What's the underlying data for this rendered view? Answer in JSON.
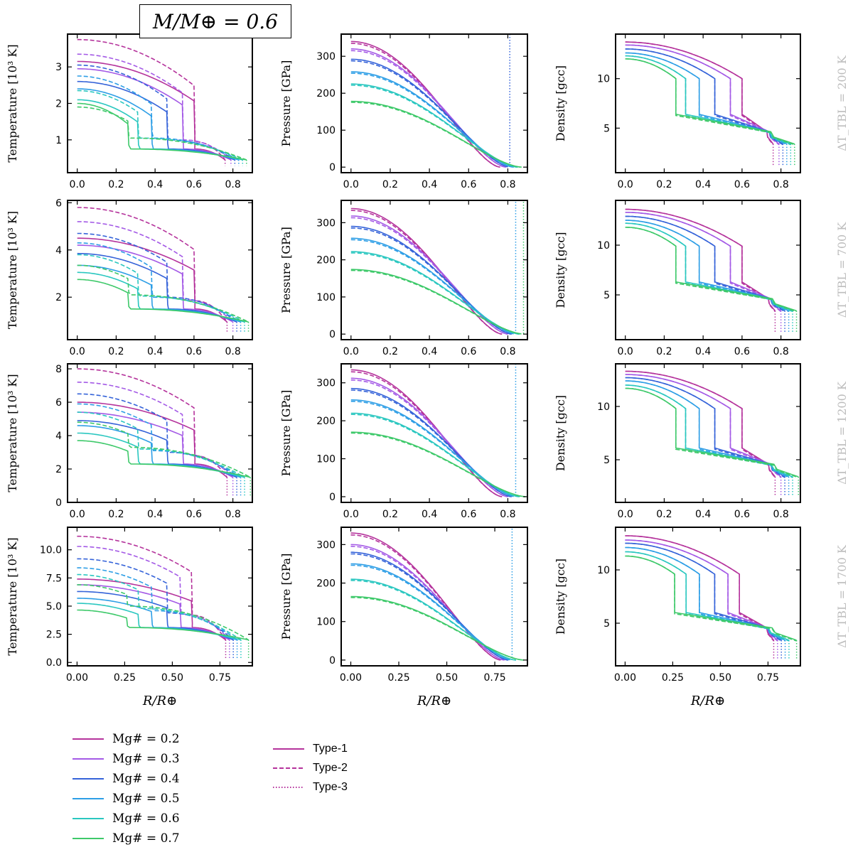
{
  "figure_title": "M/M⊕ = 0.6",
  "x_label": "R/R⊕",
  "row_labels": [
    "ΔT_TBL = 200 K",
    "ΔT_TBL = 700 K",
    "ΔT_TBL = 1200 K",
    "ΔT_TBL = 1700 K"
  ],
  "column_ylabels": [
    "Temperature [10³ K]",
    "Pressure [GPa]",
    "Density [gcc]"
  ],
  "legend": {
    "mg": [
      {
        "label": "Mg# = 0.2",
        "color": "#b5339c"
      },
      {
        "label": "Mg# = 0.3",
        "color": "#a45ae6"
      },
      {
        "label": "Mg# = 0.4",
        "color": "#3563d9"
      },
      {
        "label": "Mg# = 0.5",
        "color": "#2d9ee6"
      },
      {
        "label": "Mg# = 0.6",
        "color": "#2ac7c0"
      },
      {
        "label": "Mg# = 0.7",
        "color": "#3ec96a"
      }
    ],
    "types": [
      {
        "label": "Type-1",
        "style": "solid"
      },
      {
        "label": "Type-2",
        "style": "dashed"
      },
      {
        "label": "Type-3",
        "style": "dotted"
      }
    ]
  },
  "chart_data": [
    {
      "type": "line",
      "row": 0,
      "col": 0,
      "quantity": "temperature",
      "ylabel": "Temperature [10³ K]",
      "xlim": [
        -0.05,
        0.9
      ],
      "ylim": [
        0.1,
        3.9
      ],
      "yticks": [
        1,
        2,
        3
      ],
      "xticks": [
        0.0,
        0.2,
        0.4,
        0.6,
        0.8
      ],
      "core_radius": [
        0.6,
        0.54,
        0.46,
        0.38,
        0.31,
        0.26
      ],
      "surface_radius": [
        0.76,
        0.79,
        0.81,
        0.83,
        0.85,
        0.87
      ],
      "type1_center": [
        3.15,
        2.95,
        2.6,
        2.4,
        2.1,
        2.0
      ],
      "type2_center": [
        3.75,
        3.35,
        3.05,
        2.75,
        2.35,
        1.9
      ],
      "type1_mantle": [
        0.75,
        0.75,
        0.75,
        0.75,
        0.75,
        0.75
      ],
      "type2_mantle": [
        0.95,
        1.0,
        1.0,
        1.05,
        1.05,
        1.05
      ],
      "surface_temp": [
        0.45,
        0.45,
        0.45,
        0.45,
        0.45,
        0.45
      ]
    },
    {
      "type": "line",
      "row": 0,
      "col": 1,
      "quantity": "pressure",
      "ylabel": "Pressure [GPa]",
      "xlim": [
        -0.05,
        0.9
      ],
      "ylim": [
        -15,
        360
      ],
      "yticks": [
        0,
        100,
        200,
        300
      ],
      "xticks": [
        0.0,
        0.2,
        0.4,
        0.6,
        0.8
      ],
      "core_radius": [
        0.6,
        0.54,
        0.46,
        0.38,
        0.31,
        0.26
      ],
      "surface_radius": [
        0.76,
        0.79,
        0.81,
        0.83,
        0.85,
        0.87
      ],
      "center_pressure": [
        340,
        320,
        292,
        258,
        225,
        178
      ]
    },
    {
      "type": "line",
      "row": 0,
      "col": 2,
      "quantity": "density",
      "ylabel": "Density [gcc]",
      "xlim": [
        -0.05,
        0.9
      ],
      "ylim": [
        0.5,
        14.5
      ],
      "yticks": [
        5,
        10
      ],
      "xticks": [
        0.0,
        0.2,
        0.4,
        0.6,
        0.8
      ],
      "core_radius": [
        0.6,
        0.54,
        0.46,
        0.38,
        0.31,
        0.26
      ],
      "surface_radius": [
        0.76,
        0.79,
        0.81,
        0.83,
        0.85,
        0.87
      ],
      "center_density": [
        13.7,
        13.4,
        13.0,
        12.6,
        12.3,
        12.0
      ],
      "core_edge_density": [
        10.0,
        10.0,
        10.0,
        10.0,
        10.0,
        10.0
      ],
      "mantle_density": [
        6.4,
        6.4,
        6.4,
        6.4,
        6.4,
        6.4
      ]
    },
    {
      "type": "line",
      "row": 1,
      "col": 0,
      "quantity": "temperature",
      "ylabel": "Temperature [10³ K]",
      "xlim": [
        -0.05,
        0.9
      ],
      "ylim": [
        0.2,
        6.1
      ],
      "yticks": [
        2,
        4,
        6
      ],
      "xticks": [
        0.0,
        0.2,
        0.4,
        0.6,
        0.8
      ],
      "core_radius": [
        0.6,
        0.54,
        0.46,
        0.38,
        0.31,
        0.26
      ],
      "surface_radius": [
        0.77,
        0.8,
        0.82,
        0.84,
        0.86,
        0.88
      ],
      "type1_center": [
        4.5,
        4.2,
        3.85,
        3.35,
        3.05,
        2.75
      ],
      "type2_center": [
        5.8,
        5.2,
        4.7,
        4.3,
        3.8,
        3.35
      ],
      "type1_mantle": [
        1.5,
        1.5,
        1.5,
        1.5,
        1.5,
        1.5
      ],
      "type2_mantle": [
        1.85,
        1.9,
        2.0,
        2.0,
        2.05,
        2.1
      ],
      "surface_temp": [
        0.95,
        0.95,
        0.95,
        0.95,
        0.95,
        0.95
      ]
    },
    {
      "type": "line",
      "row": 1,
      "col": 1,
      "quantity": "pressure",
      "ylabel": "Pressure [GPa]",
      "xlim": [
        -0.05,
        0.9
      ],
      "ylim": [
        -15,
        360
      ],
      "yticks": [
        0,
        100,
        200,
        300
      ],
      "xticks": [
        0.0,
        0.2,
        0.4,
        0.6,
        0.8
      ],
      "core_radius": [
        0.6,
        0.54,
        0.46,
        0.38,
        0.31,
        0.26
      ],
      "surface_radius": [
        0.77,
        0.8,
        0.82,
        0.84,
        0.86,
        0.88
      ],
      "center_pressure": [
        338,
        318,
        290,
        258,
        222,
        174
      ]
    },
    {
      "type": "line",
      "row": 1,
      "col": 2,
      "quantity": "density",
      "ylabel": "Density [gcc]",
      "xlim": [
        -0.05,
        0.9
      ],
      "ylim": [
        0.5,
        14.5
      ],
      "yticks": [
        5,
        10
      ],
      "xticks": [
        0.0,
        0.2,
        0.4,
        0.6,
        0.8
      ],
      "core_radius": [
        0.6,
        0.54,
        0.46,
        0.38,
        0.31,
        0.26
      ],
      "surface_radius": [
        0.77,
        0.8,
        0.82,
        0.84,
        0.86,
        0.88
      ],
      "center_density": [
        13.6,
        13.3,
        12.9,
        12.5,
        12.2,
        11.8
      ],
      "core_edge_density": [
        9.9,
        9.9,
        9.9,
        9.9,
        9.9,
        9.9
      ],
      "mantle_density": [
        6.3,
        6.3,
        6.3,
        6.3,
        6.3,
        6.3
      ]
    },
    {
      "type": "line",
      "row": 2,
      "col": 0,
      "quantity": "temperature",
      "ylabel": "Temperature [10³ K]",
      "xlim": [
        -0.05,
        0.9
      ],
      "ylim": [
        0,
        8.3
      ],
      "yticks": [
        0,
        2,
        4,
        6,
        8
      ],
      "xticks": [
        0.0,
        0.2,
        0.4,
        0.6,
        0.8
      ],
      "core_radius": [
        0.6,
        0.54,
        0.46,
        0.38,
        0.31,
        0.26
      ],
      "surface_radius": [
        0.77,
        0.8,
        0.82,
        0.84,
        0.86,
        0.89
      ],
      "type1_center": [
        6.0,
        5.4,
        4.9,
        4.6,
        4.15,
        3.7
      ],
      "type2_center": [
        8.0,
        7.2,
        6.5,
        5.9,
        5.4,
        4.8
      ],
      "type1_mantle": [
        2.3,
        2.3,
        2.3,
        2.3,
        2.3,
        2.3
      ],
      "type2_mantle": [
        2.8,
        2.9,
        3.0,
        3.1,
        3.2,
        3.3
      ],
      "surface_temp": [
        1.5,
        1.5,
        1.5,
        1.5,
        1.5,
        1.5
      ]
    },
    {
      "type": "line",
      "row": 2,
      "col": 1,
      "quantity": "pressure",
      "ylabel": "Pressure [GPa]",
      "xlim": [
        -0.05,
        0.9
      ],
      "ylim": [
        -15,
        350
      ],
      "yticks": [
        0,
        100,
        200,
        300
      ],
      "xticks": [
        0.0,
        0.2,
        0.4,
        0.6,
        0.8
      ],
      "core_radius": [
        0.6,
        0.54,
        0.46,
        0.38,
        0.31,
        0.26
      ],
      "surface_radius": [
        0.77,
        0.8,
        0.82,
        0.84,
        0.86,
        0.89
      ],
      "center_pressure": [
        334,
        312,
        285,
        255,
        220,
        170
      ]
    },
    {
      "type": "line",
      "row": 2,
      "col": 2,
      "quantity": "density",
      "ylabel": "Density [gcc]",
      "xlim": [
        -0.05,
        0.9
      ],
      "ylim": [
        1,
        14
      ],
      "yticks": [
        5,
        10
      ],
      "xticks": [
        0.0,
        0.2,
        0.4,
        0.6,
        0.8
      ],
      "core_radius": [
        0.6,
        0.54,
        0.46,
        0.38,
        0.31,
        0.26
      ],
      "surface_radius": [
        0.77,
        0.8,
        0.82,
        0.84,
        0.86,
        0.89
      ],
      "center_density": [
        13.3,
        13.0,
        12.7,
        12.4,
        12.0,
        11.7
      ],
      "core_edge_density": [
        9.8,
        9.8,
        9.8,
        9.8,
        9.8,
        9.8
      ],
      "mantle_density": [
        6.1,
        6.1,
        6.1,
        6.1,
        6.1,
        6.1
      ]
    },
    {
      "type": "line",
      "row": 3,
      "col": 0,
      "quantity": "temperature",
      "ylabel": "Temperature [10³ K]",
      "xlim": [
        -0.05,
        0.92
      ],
      "ylim": [
        -0.3,
        12
      ],
      "yticks": [
        0.0,
        2.5,
        5.0,
        7.5,
        10.0
      ],
      "xticks": [
        0.0,
        0.25,
        0.5,
        0.75
      ],
      "core_radius": [
        0.6,
        0.54,
        0.47,
        0.39,
        0.32,
        0.26
      ],
      "surface_radius": [
        0.78,
        0.8,
        0.82,
        0.84,
        0.86,
        0.9
      ],
      "type1_center": [
        7.4,
        6.9,
        6.3,
        5.7,
        5.25,
        4.65
      ],
      "type2_center": [
        11.2,
        10.3,
        9.2,
        8.4,
        7.8,
        6.9
      ],
      "type1_mantle": [
        3.1,
        3.1,
        3.1,
        3.1,
        3.1,
        3.1
      ],
      "type2_mantle": [
        4.2,
        4.3,
        4.4,
        4.6,
        4.8,
        5.0
      ],
      "surface_temp": [
        2.0,
        2.0,
        2.0,
        2.0,
        2.0,
        2.0
      ]
    },
    {
      "type": "line",
      "row": 3,
      "col": 1,
      "quantity": "pressure",
      "ylabel": "Pressure [GPa]",
      "xlim": [
        -0.05,
        0.92
      ],
      "ylim": [
        -15,
        345
      ],
      "yticks": [
        0,
        100,
        200,
        300
      ],
      "xticks": [
        0.0,
        0.25,
        0.5,
        0.75
      ],
      "core_radius": [
        0.6,
        0.54,
        0.47,
        0.39,
        0.32,
        0.26
      ],
      "surface_radius": [
        0.78,
        0.8,
        0.82,
        0.84,
        0.86,
        0.9
      ],
      "center_pressure": [
        330,
        300,
        280,
        250,
        210,
        165
      ]
    },
    {
      "type": "line",
      "row": 3,
      "col": 2,
      "quantity": "density",
      "ylabel": "Density [gcc]",
      "xlim": [
        -0.05,
        0.92
      ],
      "ylim": [
        1,
        14
      ],
      "yticks": [
        5,
        10
      ],
      "xticks": [
        0.0,
        0.25,
        0.5,
        0.75
      ],
      "core_radius": [
        0.6,
        0.54,
        0.47,
        0.39,
        0.32,
        0.26
      ],
      "surface_radius": [
        0.78,
        0.8,
        0.82,
        0.84,
        0.86,
        0.9
      ],
      "center_density": [
        13.2,
        12.8,
        12.5,
        12.1,
        11.7,
        11.3
      ],
      "core_edge_density": [
        9.6,
        9.6,
        9.6,
        9.6,
        9.6,
        9.6
      ],
      "mantle_density": [
        6.0,
        6.0,
        6.0,
        6.0,
        6.0,
        6.0
      ]
    }
  ]
}
